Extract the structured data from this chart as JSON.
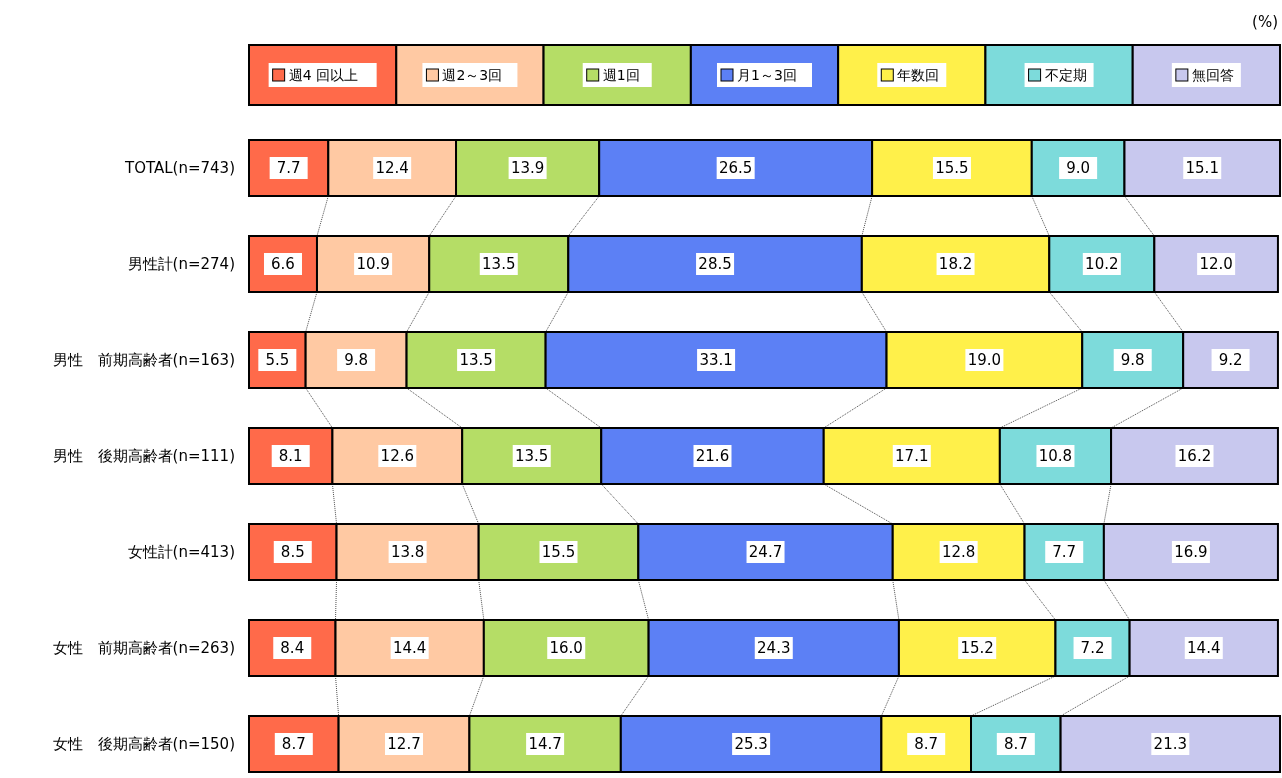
{
  "chart_data": {
    "type": "bar",
    "orientation": "horizontal",
    "stacked": true,
    "legend": "top",
    "categories": [
      "TOTAL(n=743)",
      "男性計(n=274)",
      "男性　前期高齢者(n=163)",
      "男性　後期高齢者(n=111)",
      "女性計(n=413)",
      "女性　前期高齢者(n=263)",
      "女性　後期高齢者(n=150)"
    ],
    "series": [
      {
        "name": "週4 回以上",
        "color": "#ff6a4a",
        "values": [
          7.7,
          6.6,
          5.5,
          8.1,
          8.5,
          8.4,
          8.7
        ],
        "value_labels": [
          "7.7",
          "6.6",
          "5.5",
          "8.1",
          "8.5",
          "8.4",
          "8.7"
        ]
      },
      {
        "name": "週2～3回",
        "color": "#ffc9a3",
        "values": [
          12.4,
          10.9,
          9.8,
          12.6,
          13.8,
          14.4,
          12.7
        ],
        "value_labels": [
          "12.4",
          "10.9",
          "9.8",
          "12.6",
          "13.8",
          "14.4",
          "12.7"
        ]
      },
      {
        "name": "週1回",
        "color": "#b5dd66",
        "values": [
          13.9,
          13.5,
          13.5,
          13.5,
          15.5,
          16.0,
          14.7
        ],
        "value_labels": [
          "13.9",
          "13.5",
          "13.5",
          "13.5",
          "15.5",
          "16.0",
          "14.7"
        ]
      },
      {
        "name": "月1～3回",
        "color": "#5c80f5",
        "values": [
          26.5,
          28.5,
          33.1,
          21.6,
          24.7,
          24.3,
          25.3
        ],
        "value_labels": [
          "26.5",
          "28.5",
          "33.1",
          "21.6",
          "24.7",
          "24.3",
          "25.3"
        ]
      },
      {
        "name": "年数回",
        "color": "#fff04a",
        "values": [
          15.5,
          18.2,
          19.0,
          17.1,
          12.8,
          15.2,
          8.7
        ],
        "value_labels": [
          "15.5",
          "18.2",
          "19.0",
          "17.1",
          "12.8",
          "15.2",
          "8.7"
        ]
      },
      {
        "name": "不定期",
        "color": "#7ddbdb",
        "values": [
          9.0,
          10.2,
          9.8,
          10.8,
          7.7,
          7.2,
          8.7
        ],
        "value_labels": [
          "9.0",
          "10.2",
          "9.8",
          "10.8",
          "7.7",
          "7.2",
          "8.7"
        ]
      },
      {
        "name": "無回答",
        "color": "#c8c8ee",
        "values": [
          15.1,
          12.0,
          9.2,
          16.2,
          16.9,
          14.4,
          21.3
        ],
        "value_labels": [
          "15.1",
          "12.0",
          "9.2",
          "16.2",
          "16.9",
          "14.4",
          "21.3"
        ]
      }
    ],
    "annotations": [
      "(%)"
    ]
  }
}
